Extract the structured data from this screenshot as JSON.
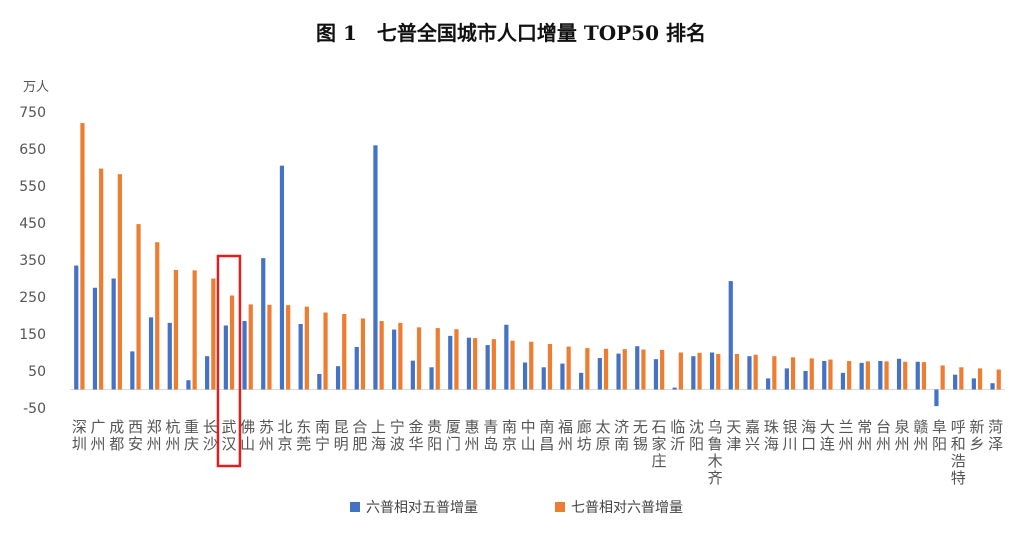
{
  "chart_data": {
    "type": "bar",
    "title": "图 1　七普全国城市人口增量 TOP50 排名",
    "ylabel": "万人",
    "ylim": [
      -50,
      750
    ],
    "yticks": [
      -50,
      50,
      150,
      250,
      350,
      450,
      550,
      650,
      750
    ],
    "grid": false,
    "legend_position": "bottom",
    "highlight": {
      "category": "武汉",
      "color": "#e02020"
    },
    "categories": [
      "深圳",
      "广州",
      "成都",
      "西安",
      "郑州",
      "杭州",
      "重庆",
      "长沙",
      "武汉",
      "佛山",
      "苏州",
      "北京",
      "东莞",
      "南宁",
      "昆明",
      "合肥",
      "上海",
      "宁波",
      "金华",
      "贵阳",
      "厦门",
      "惠州",
      "青岛",
      "南京",
      "中山",
      "南昌",
      "福州",
      "廊坊",
      "太原",
      "济南",
      "无锡",
      "石家庄",
      "临沂",
      "沈阳",
      "乌鲁木齐",
      "天津",
      "嘉兴",
      "珠海",
      "银川",
      "海口",
      "大连",
      "兰州",
      "常州",
      "台州",
      "泉州",
      "赣州",
      "阜阳",
      "呼和浩特",
      "新乡",
      "菏泽"
    ],
    "series": [
      {
        "name": "六普相对五普增量",
        "color": "#4472c4",
        "values": [
          335,
          275,
          300,
          103,
          195,
          180,
          25,
          90,
          173,
          185,
          355,
          605,
          177,
          42,
          63,
          115,
          660,
          162,
          78,
          60,
          145,
          140,
          120,
          175,
          73,
          60,
          70,
          45,
          85,
          97,
          117,
          82,
          5,
          90,
          100,
          293,
          90,
          30,
          57,
          50,
          77,
          45,
          72,
          77,
          83,
          75,
          -45,
          40,
          30,
          17
        ]
      },
      {
        "name": "七普相对六普增量",
        "color": "#ed7d31",
        "values": [
          720,
          597,
          582,
          447,
          398,
          323,
          322,
          300,
          254,
          230,
          229,
          228,
          224,
          208,
          204,
          192,
          185,
          180,
          168,
          166,
          163,
          139,
          136,
          132,
          129,
          123,
          116,
          112,
          110,
          109,
          108,
          107,
          100,
          99,
          96,
          96,
          94,
          90,
          87,
          84,
          81,
          77,
          76,
          76,
          75,
          74,
          65,
          60,
          57,
          54
        ]
      }
    ]
  }
}
